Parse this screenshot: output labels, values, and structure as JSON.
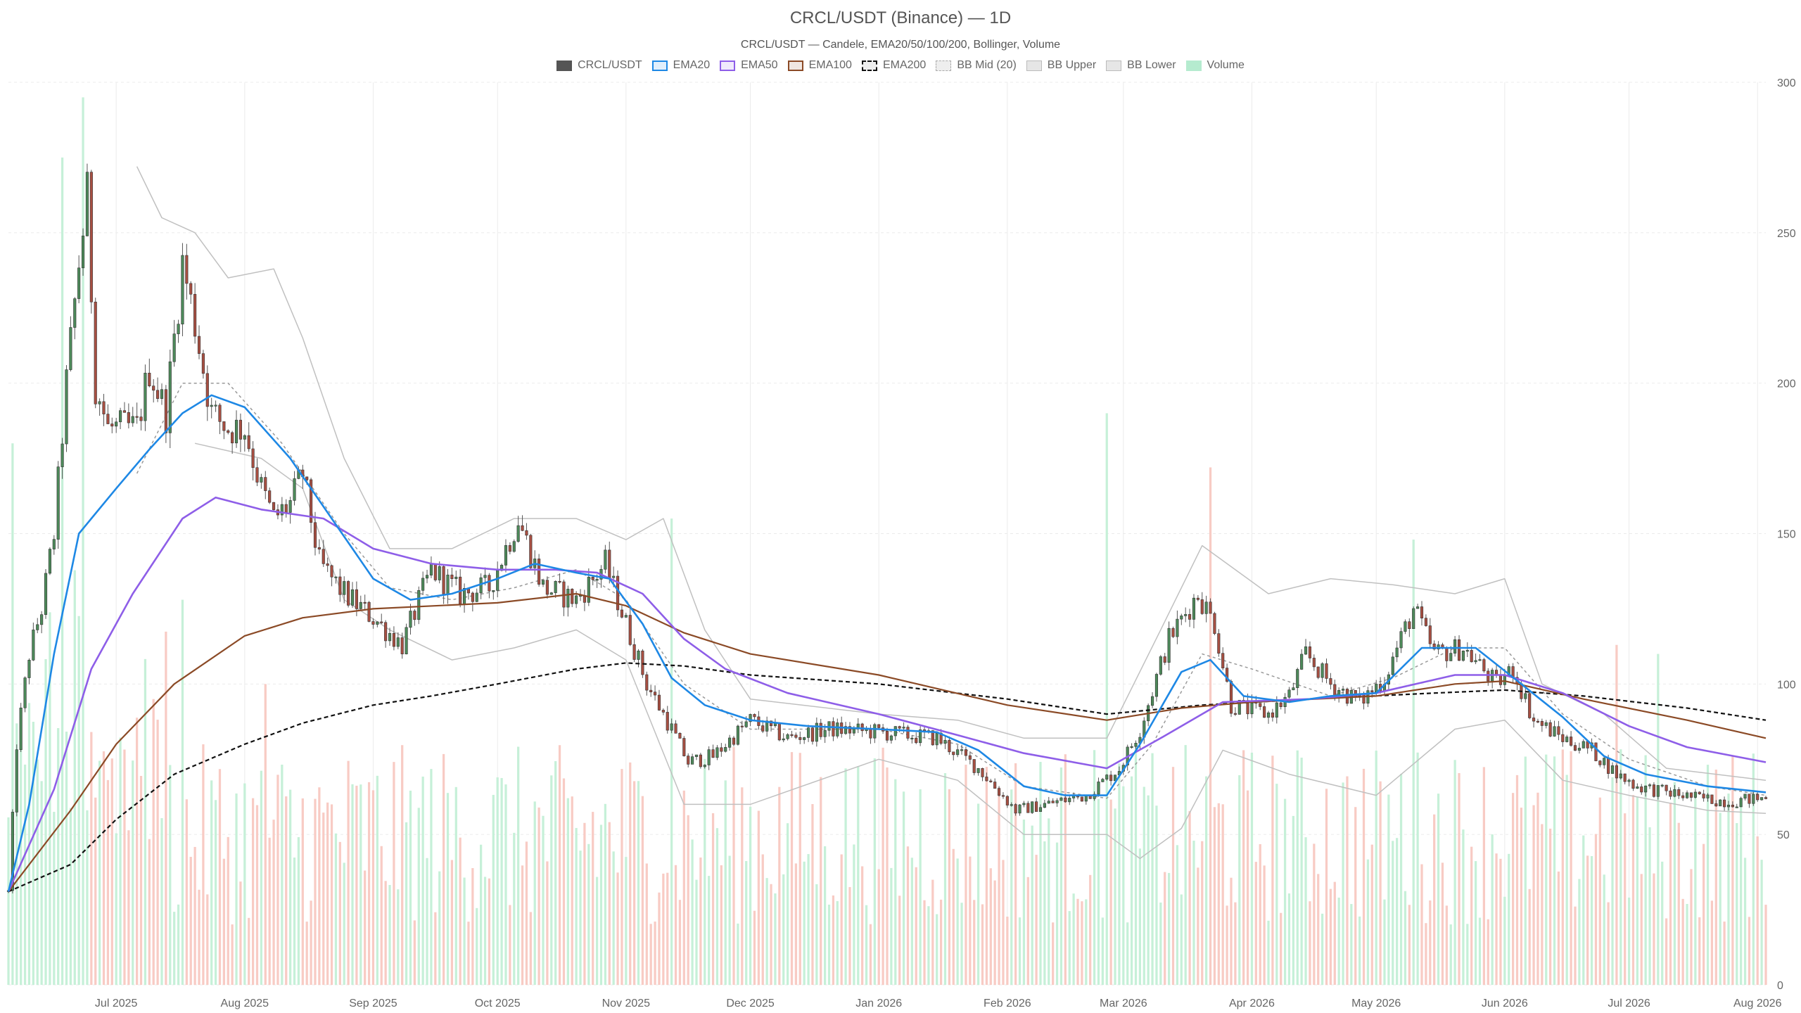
{
  "chart_data": {
    "type": "candlestick",
    "title": "CRCL/USDT (Binance) — 1D",
    "subtitle": "CRCL/USDT — Candele, EMA20/50/100/200, Bollinger, Volume",
    "ylim": [
      0,
      300
    ],
    "y_ticks": [
      0,
      50,
      100,
      150,
      200,
      250,
      300
    ],
    "x_range": [
      "2025-06-05",
      "2026-08-03"
    ],
    "x_ticks": [
      {
        "date": "2025-07-01",
        "label": "Jul 2025"
      },
      {
        "date": "2025-08-01",
        "label": "Aug 2025"
      },
      {
        "date": "2025-09-01",
        "label": "Sep 2025"
      },
      {
        "date": "2025-10-01",
        "label": "Oct 2025"
      },
      {
        "date": "2025-11-01",
        "label": "Nov 2025"
      },
      {
        "date": "2025-12-01",
        "label": "Dec 2025"
      },
      {
        "date": "2026-01-01",
        "label": "Jan 2026"
      },
      {
        "date": "2026-02-01",
        "label": "Feb 2026"
      },
      {
        "date": "2026-03-01",
        "label": "Mar 2026"
      },
      {
        "date": "2026-04-01",
        "label": "Apr 2026"
      },
      {
        "date": "2026-05-01",
        "label": "May 2026"
      },
      {
        "date": "2026-06-01",
        "label": "Jun 2026"
      },
      {
        "date": "2026-07-01",
        "label": "Jul 2026"
      },
      {
        "date": "2026-08-01",
        "label": "Aug 2026"
      }
    ],
    "grid": true,
    "legend_position": "top-center",
    "legend": [
      {
        "key": "candles",
        "label": "CRCL/USDT",
        "style": "fill",
        "color": "#555555"
      },
      {
        "key": "ema20",
        "label": "EMA20",
        "style": "line",
        "color": "#1e88e5"
      },
      {
        "key": "ema50",
        "label": "EMA50",
        "style": "line",
        "color": "#8e5ee8"
      },
      {
        "key": "ema100",
        "label": "EMA100",
        "style": "line",
        "color": "#8b4a26"
      },
      {
        "key": "ema200",
        "label": "EMA200",
        "style": "dashed",
        "color": "#111111"
      },
      {
        "key": "bbmid",
        "label": "BB Mid (20)",
        "style": "dotted",
        "color": "#aaaaaa"
      },
      {
        "key": "bbupper",
        "label": "BB Upper",
        "style": "band",
        "color": "#bbbbbb"
      },
      {
        "key": "bblower",
        "label": "BB Lower",
        "style": "band",
        "color": "#bbbbbb"
      },
      {
        "key": "volume",
        "label": "Volume",
        "style": "volume",
        "color": "#b5ebcf"
      }
    ],
    "colors": {
      "up": "#4d8a5a",
      "down": "#a84f42",
      "volume_up": "#c6f0d8",
      "volume_down": "#f8cbc4",
      "bollinger": "#c0c0c0",
      "bb_mid": "#999999",
      "grid": "#ebebeb"
    },
    "volume_scale_max": 300,
    "price_keypoints": [
      [
        "2025-06-05",
        31
      ],
      [
        "2025-06-07",
        80
      ],
      [
        "2025-06-10",
        110
      ],
      [
        "2025-06-13",
        125
      ],
      [
        "2025-06-16",
        150
      ],
      [
        "2025-06-19",
        200
      ],
      [
        "2025-06-22",
        240
      ],
      [
        "2025-06-24",
        262
      ],
      [
        "2025-06-26",
        200
      ],
      [
        "2025-06-29",
        185
      ],
      [
        "2025-07-02",
        185
      ],
      [
        "2025-07-06",
        185
      ],
      [
        "2025-07-09",
        205
      ],
      [
        "2025-07-13",
        190
      ],
      [
        "2025-07-17",
        240
      ],
      [
        "2025-07-20",
        220
      ],
      [
        "2025-07-24",
        190
      ],
      [
        "2025-07-28",
        185
      ],
      [
        "2025-08-01",
        185
      ],
      [
        "2025-08-05",
        165
      ],
      [
        "2025-08-08",
        155
      ],
      [
        "2025-08-12",
        160
      ],
      [
        "2025-08-15",
        170
      ],
      [
        "2025-08-19",
        140
      ],
      [
        "2025-08-25",
        130
      ],
      [
        "2025-09-01",
        122
      ],
      [
        "2025-09-08",
        113
      ],
      [
        "2025-09-15",
        138
      ],
      [
        "2025-09-22",
        130
      ],
      [
        "2025-09-29",
        132
      ],
      [
        "2025-10-06",
        155
      ],
      [
        "2025-10-12",
        132
      ],
      [
        "2025-10-20",
        128
      ],
      [
        "2025-10-27",
        140
      ],
      [
        "2025-11-01",
        120
      ],
      [
        "2025-11-06",
        100
      ],
      [
        "2025-11-12",
        85
      ],
      [
        "2025-11-16",
        74
      ],
      [
        "2025-11-22",
        76
      ],
      [
        "2025-12-01",
        88
      ],
      [
        "2025-12-10",
        82
      ],
      [
        "2025-12-20",
        85
      ],
      [
        "2026-01-01",
        84
      ],
      [
        "2026-01-15",
        82
      ],
      [
        "2026-01-25",
        72
      ],
      [
        "2026-02-03",
        58
      ],
      [
        "2026-02-10",
        60
      ],
      [
        "2026-02-20",
        63
      ],
      [
        "2026-02-28",
        72
      ],
      [
        "2026-03-05",
        85
      ],
      [
        "2026-03-12",
        115
      ],
      [
        "2026-03-19",
        130
      ],
      [
        "2026-03-23",
        120
      ],
      [
        "2026-03-27",
        93
      ],
      [
        "2026-04-05",
        90
      ],
      [
        "2026-04-10",
        96
      ],
      [
        "2026-04-14",
        110
      ],
      [
        "2026-04-20",
        100
      ],
      [
        "2026-04-27",
        94
      ],
      [
        "2026-05-03",
        102
      ],
      [
        "2026-05-10",
        125
      ],
      [
        "2026-05-15",
        110
      ],
      [
        "2026-05-22",
        112
      ],
      [
        "2026-05-30",
        100
      ],
      [
        "2026-06-03",
        105
      ],
      [
        "2026-06-08",
        88
      ],
      [
        "2026-06-15",
        82
      ],
      [
        "2026-06-22",
        78
      ],
      [
        "2026-06-28",
        70
      ],
      [
        "2026-07-03",
        66
      ],
      [
        "2026-07-10",
        64
      ],
      [
        "2026-07-18",
        62
      ],
      [
        "2026-07-25",
        61
      ],
      [
        "2026-08-02",
        62
      ]
    ],
    "ema20": [
      [
        "2025-06-05",
        31
      ],
      [
        "2025-06-10",
        60
      ],
      [
        "2025-06-16",
        110
      ],
      [
        "2025-06-22",
        150
      ],
      [
        "2025-07-01",
        165
      ],
      [
        "2025-07-09",
        178
      ],
      [
        "2025-07-17",
        190
      ],
      [
        "2025-07-24",
        196
      ],
      [
        "2025-08-01",
        192
      ],
      [
        "2025-08-12",
        175
      ],
      [
        "2025-08-22",
        155
      ],
      [
        "2025-09-01",
        135
      ],
      [
        "2025-09-10",
        128
      ],
      [
        "2025-09-20",
        130
      ],
      [
        "2025-10-01",
        135
      ],
      [
        "2025-10-10",
        140
      ],
      [
        "2025-10-20",
        137
      ],
      [
        "2025-10-28",
        135
      ],
      [
        "2025-11-05",
        120
      ],
      [
        "2025-11-12",
        102
      ],
      [
        "2025-11-20",
        93
      ],
      [
        "2025-12-01",
        88
      ],
      [
        "2025-12-15",
        86
      ],
      [
        "2026-01-01",
        85
      ],
      [
        "2026-01-15",
        84
      ],
      [
        "2026-01-25",
        78
      ],
      [
        "2026-02-05",
        66
      ],
      [
        "2026-02-15",
        63
      ],
      [
        "2026-02-25",
        63
      ],
      [
        "2026-03-05",
        80
      ],
      [
        "2026-03-15",
        104
      ],
      [
        "2026-03-22",
        108
      ],
      [
        "2026-03-30",
        96
      ],
      [
        "2026-04-10",
        94
      ],
      [
        "2026-04-20",
        96
      ],
      [
        "2026-05-01",
        97
      ],
      [
        "2026-05-12",
        112
      ],
      [
        "2026-05-25",
        112
      ],
      [
        "2026-06-05",
        100
      ],
      [
        "2026-06-15",
        89
      ],
      [
        "2026-06-25",
        76
      ],
      [
        "2026-07-05",
        70
      ],
      [
        "2026-07-20",
        66
      ],
      [
        "2026-08-03",
        64
      ]
    ],
    "ema50": [
      [
        "2025-06-05",
        31
      ],
      [
        "2025-06-16",
        65
      ],
      [
        "2025-06-25",
        105
      ],
      [
        "2025-07-05",
        130
      ],
      [
        "2025-07-17",
        155
      ],
      [
        "2025-07-25",
        162
      ],
      [
        "2025-08-05",
        158
      ],
      [
        "2025-08-20",
        155
      ],
      [
        "2025-09-01",
        145
      ],
      [
        "2025-09-15",
        140
      ],
      [
        "2025-10-01",
        138
      ],
      [
        "2025-10-15",
        138
      ],
      [
        "2025-10-25",
        137
      ],
      [
        "2025-11-05",
        130
      ],
      [
        "2025-11-15",
        115
      ],
      [
        "2025-11-25",
        105
      ],
      [
        "2025-12-10",
        97
      ],
      [
        "2026-01-01",
        90
      ],
      [
        "2026-01-20",
        83
      ],
      [
        "2026-02-05",
        77
      ],
      [
        "2026-02-25",
        72
      ],
      [
        "2026-03-10",
        82
      ],
      [
        "2026-03-25",
        94
      ],
      [
        "2026-04-15",
        95
      ],
      [
        "2026-05-01",
        97
      ],
      [
        "2026-05-20",
        103
      ],
      [
        "2026-06-01",
        103
      ],
      [
        "2026-06-15",
        97
      ],
      [
        "2026-07-01",
        86
      ],
      [
        "2026-07-15",
        79
      ],
      [
        "2026-08-03",
        74
      ]
    ],
    "ema100": [
      [
        "2025-06-05",
        31
      ],
      [
        "2025-06-20",
        58
      ],
      [
        "2025-07-01",
        80
      ],
      [
        "2025-07-15",
        100
      ],
      [
        "2025-08-01",
        116
      ],
      [
        "2025-08-15",
        122
      ],
      [
        "2025-09-01",
        125
      ],
      [
        "2025-10-01",
        127
      ],
      [
        "2025-10-20",
        130
      ],
      [
        "2025-11-01",
        126
      ],
      [
        "2025-11-15",
        117
      ],
      [
        "2025-12-01",
        110
      ],
      [
        "2026-01-01",
        103
      ],
      [
        "2026-02-01",
        93
      ],
      [
        "2026-02-25",
        88
      ],
      [
        "2026-03-15",
        92
      ],
      [
        "2026-04-01",
        94
      ],
      [
        "2026-05-01",
        96
      ],
      [
        "2026-05-20",
        100
      ],
      [
        "2026-06-01",
        101
      ],
      [
        "2026-06-20",
        95
      ],
      [
        "2026-07-15",
        88
      ],
      [
        "2026-08-03",
        82
      ]
    ],
    "ema200": [
      [
        "2025-06-05",
        31
      ],
      [
        "2025-06-20",
        40
      ],
      [
        "2025-07-01",
        55
      ],
      [
        "2025-07-15",
        70
      ],
      [
        "2025-08-01",
        80
      ],
      [
        "2025-08-15",
        87
      ],
      [
        "2025-09-01",
        93
      ],
      [
        "2025-09-15",
        96
      ],
      [
        "2025-10-01",
        100
      ],
      [
        "2025-10-20",
        105
      ],
      [
        "2025-11-01",
        107
      ],
      [
        "2025-11-15",
        106
      ],
      [
        "2025-12-01",
        103
      ],
      [
        "2026-01-01",
        100
      ],
      [
        "2026-02-01",
        95
      ],
      [
        "2026-02-25",
        90
      ],
      [
        "2026-03-20",
        93
      ],
      [
        "2026-04-15",
        95
      ],
      [
        "2026-05-15",
        97
      ],
      [
        "2026-06-01",
        98
      ],
      [
        "2026-06-20",
        96
      ],
      [
        "2026-07-15",
        92
      ],
      [
        "2026-08-03",
        88
      ]
    ],
    "bb_mid": [
      [
        "2025-07-06",
        170
      ],
      [
        "2025-07-17",
        200
      ],
      [
        "2025-07-28",
        200
      ],
      [
        "2025-08-10",
        180
      ],
      [
        "2025-08-25",
        150
      ],
      [
        "2025-09-05",
        132
      ],
      [
        "2025-09-20",
        128
      ],
      [
        "2025-10-05",
        132
      ],
      [
        "2025-10-20",
        138
      ],
      [
        "2025-11-01",
        128
      ],
      [
        "2025-11-15",
        100
      ],
      [
        "2025-12-01",
        85
      ],
      [
        "2026-01-01",
        85
      ],
      [
        "2026-01-20",
        80
      ],
      [
        "2026-02-05",
        66
      ],
      [
        "2026-02-25",
        62
      ],
      [
        "2026-03-08",
        80
      ],
      [
        "2026-03-20",
        110
      ],
      [
        "2026-04-01",
        105
      ],
      [
        "2026-04-20",
        96
      ],
      [
        "2026-05-05",
        102
      ],
      [
        "2026-05-20",
        112
      ],
      [
        "2026-06-01",
        112
      ],
      [
        "2026-06-15",
        90
      ],
      [
        "2026-07-01",
        75
      ],
      [
        "2026-07-20",
        66
      ],
      [
        "2026-08-03",
        63
      ]
    ],
    "bb_upper": [
      [
        "2025-07-06",
        272
      ],
      [
        "2025-07-12",
        255
      ],
      [
        "2025-07-20",
        250
      ],
      [
        "2025-07-28",
        235
      ],
      [
        "2025-08-08",
        238
      ],
      [
        "2025-08-15",
        215
      ],
      [
        "2025-08-25",
        175
      ],
      [
        "2025-09-05",
        145
      ],
      [
        "2025-09-20",
        145
      ],
      [
        "2025-10-05",
        155
      ],
      [
        "2025-10-20",
        155
      ],
      [
        "2025-11-01",
        148
      ],
      [
        "2025-11-10",
        155
      ],
      [
        "2025-11-20",
        118
      ],
      [
        "2025-12-01",
        95
      ],
      [
        "2026-01-01",
        90
      ],
      [
        "2026-01-20",
        88
      ],
      [
        "2026-02-05",
        82
      ],
      [
        "2026-02-25",
        82
      ],
      [
        "2026-03-10",
        118
      ],
      [
        "2026-03-20",
        146
      ],
      [
        "2026-04-05",
        130
      ],
      [
        "2026-04-20",
        135
      ],
      [
        "2026-05-05",
        133
      ],
      [
        "2026-05-20",
        130
      ],
      [
        "2026-06-01",
        135
      ],
      [
        "2026-06-10",
        100
      ],
      [
        "2026-06-25",
        90
      ],
      [
        "2026-07-10",
        72
      ],
      [
        "2026-08-03",
        68
      ]
    ],
    "bb_lower": [
      [
        "2025-07-20",
        180
      ],
      [
        "2025-08-05",
        175
      ],
      [
        "2025-08-15",
        165
      ],
      [
        "2025-08-25",
        128
      ],
      [
        "2025-09-05",
        118
      ],
      [
        "2025-09-20",
        108
      ],
      [
        "2025-10-05",
        112
      ],
      [
        "2025-10-20",
        118
      ],
      [
        "2025-11-01",
        108
      ],
      [
        "2025-11-15",
        60
      ],
      [
        "2025-12-01",
        60
      ],
      [
        "2026-01-01",
        75
      ],
      [
        "2026-01-20",
        68
      ],
      [
        "2026-02-05",
        50
      ],
      [
        "2026-02-25",
        50
      ],
      [
        "2026-03-05",
        42
      ],
      [
        "2026-03-15",
        52
      ],
      [
        "2026-03-25",
        78
      ],
      [
        "2026-04-10",
        70
      ],
      [
        "2026-05-01",
        63
      ],
      [
        "2026-05-20",
        85
      ],
      [
        "2026-06-01",
        88
      ],
      [
        "2026-06-15",
        68
      ],
      [
        "2026-07-01",
        63
      ],
      [
        "2026-07-20",
        58
      ],
      [
        "2026-08-03",
        57
      ]
    ],
    "volume_spikes": [
      [
        "2025-06-06",
        180
      ],
      [
        "2025-06-18",
        275
      ],
      [
        "2025-06-23",
        295
      ],
      [
        "2025-07-10",
        95
      ],
      [
        "2025-07-17",
        128
      ],
      [
        "2025-08-06",
        100
      ],
      [
        "2025-11-12",
        155
      ],
      [
        "2026-02-25",
        190
      ],
      [
        "2026-03-22",
        172
      ],
      [
        "2026-05-10",
        148
      ],
      [
        "2026-06-28",
        113
      ],
      [
        "2026-07-08",
        110
      ]
    ]
  }
}
